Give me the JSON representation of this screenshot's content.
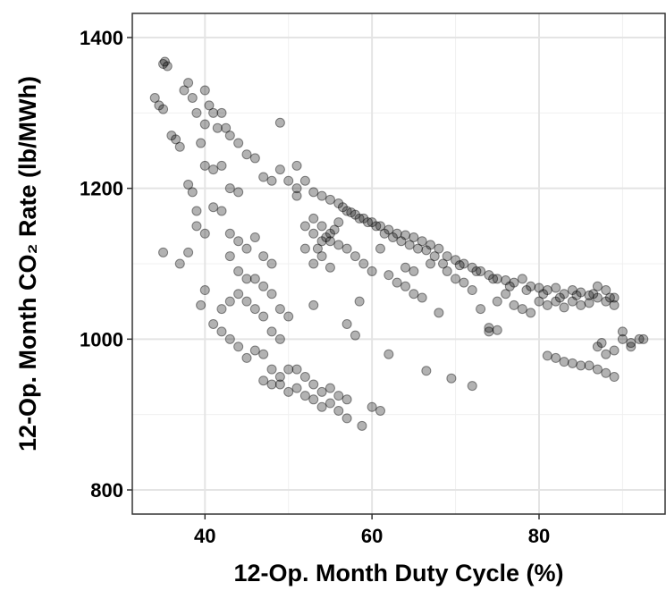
{
  "chart_data": {
    "type": "scatter",
    "x_label": "12-Op. Month Duty Cycle (%)",
    "y_label": "12-Op. Month CO₂ Rate (lb/MWh)",
    "xlim": [
      31.3,
      95.2
    ],
    "ylim": [
      768,
      1432
    ],
    "xticks": [
      40,
      60,
      80
    ],
    "yticks": [
      800,
      1000,
      1200,
      1400
    ],
    "x_minor_grid": [
      50,
      70,
      90
    ],
    "y_minor_grid": [
      900,
      1100,
      1300
    ],
    "grid": true,
    "color": "#000000",
    "opacity": 0.3,
    "x": [
      35,
      35.2,
      35.5,
      34,
      34.5,
      35,
      36,
      36.5,
      37,
      37.5,
      38,
      38.5,
      39,
      39.5,
      40,
      40,
      40.5,
      41,
      41.5,
      42,
      42.5,
      43,
      44,
      45,
      46,
      47,
      48,
      49,
      49,
      50,
      51,
      38,
      38.5,
      39,
      40,
      41,
      42,
      41,
      42,
      43,
      44,
      39,
      40,
      38,
      35,
      37,
      43,
      44,
      45,
      46,
      47,
      48,
      43,
      44,
      45,
      46,
      47,
      48,
      49,
      50,
      44,
      45,
      46,
      47,
      48,
      49,
      42,
      43,
      41,
      42,
      43,
      44,
      45,
      46,
      47,
      48,
      49,
      50,
      51,
      52,
      53,
      54,
      55,
      56,
      57,
      58.8,
      47,
      48,
      49,
      50,
      51,
      52,
      53,
      54,
      55,
      56,
      57,
      58,
      57,
      58.5,
      60,
      61,
      62,
      66.5,
      69.5,
      72,
      39.5,
      40,
      53,
      51,
      51,
      52,
      52,
      52,
      53,
      53,
      53,
      54,
      54,
      54,
      55,
      55,
      55,
      56,
      56,
      56,
      57,
      57,
      58,
      58,
      59,
      59,
      60,
      60,
      61,
      61,
      62,
      62,
      63,
      63,
      64,
      64,
      65,
      65,
      66,
      66,
      67,
      67,
      68,
      68,
      69,
      69,
      70,
      70,
      71,
      71,
      72,
      72,
      73,
      73,
      74,
      74,
      75,
      75,
      76,
      76,
      77,
      77,
      78,
      78,
      79,
      79,
      80,
      80,
      81,
      81,
      82,
      82,
      83,
      83,
      84,
      84,
      85,
      85,
      86,
      86,
      87,
      87,
      88,
      88,
      89,
      89,
      53,
      54,
      55,
      53.5,
      54.5,
      55.5,
      56.5,
      57.5,
      58.5,
      59.5,
      60.5,
      61.5,
      62.5,
      63.5,
      64.5,
      65.5,
      66.5,
      67.5,
      68.5,
      70.5,
      72.5,
      74.5,
      76.5,
      78.5,
      80.5,
      82.5,
      84.5,
      86.5,
      88.5,
      74,
      75,
      64,
      65,
      81,
      82,
      83,
      84,
      85,
      86,
      87,
      87,
      87.5,
      88,
      88,
      89,
      89,
      90,
      90,
      91,
      92,
      92.5,
      91
    ],
    "y": [
      1365,
      1368,
      1362,
      1320,
      1310,
      1305,
      1270,
      1265,
      1255,
      1330,
      1340,
      1320,
      1300,
      1260,
      1285,
      1330,
      1310,
      1300,
      1280,
      1300,
      1280,
      1270,
      1260,
      1245,
      1240,
      1215,
      1210,
      1225,
      1287,
      1210,
      1200,
      1205,
      1195,
      1170,
      1230,
      1225,
      1230,
      1175,
      1170,
      1200,
      1195,
      1150,
      1140,
      1115,
      1115,
      1100,
      1140,
      1130,
      1120,
      1135,
      1110,
      1100,
      1110,
      1090,
      1080,
      1080,
      1070,
      1060,
      1040,
      1030,
      1060,
      1050,
      1040,
      1030,
      1010,
      1000,
      1040,
      1050,
      1020,
      1010,
      1000,
      990,
      975,
      985,
      980,
      960,
      940,
      930,
      935,
      925,
      920,
      910,
      915,
      905,
      895,
      885,
      945,
      940,
      950,
      960,
      960,
      950,
      940,
      930,
      935,
      925,
      920,
      1005,
      1020,
      1050,
      910,
      905,
      980,
      958,
      948,
      938,
      1045,
      1065,
      1045,
      1230,
      1190,
      1210,
      1150,
      1120,
      1195,
      1140,
      1100,
      1190,
      1130,
      1110,
      1185,
      1140,
      1095,
      1180,
      1125,
      1155,
      1170,
      1120,
      1165,
      1110,
      1160,
      1100,
      1155,
      1090,
      1150,
      1120,
      1145,
      1085,
      1140,
      1075,
      1138,
      1070,
      1135,
      1060,
      1130,
      1055,
      1125,
      1100,
      1120,
      1035,
      1110,
      1090,
      1105,
      1080,
      1100,
      1075,
      1095,
      1065,
      1090,
      1040,
      1085,
      1010,
      1080,
      1050,
      1078,
      1060,
      1075,
      1045,
      1080,
      1040,
      1070,
      1035,
      1068,
      1050,
      1065,
      1045,
      1068,
      1050,
      1060,
      1042,
      1065,
      1050,
      1062,
      1045,
      1058,
      1048,
      1070,
      1055,
      1065,
      1050,
      1055,
      1045,
      1160,
      1150,
      1130,
      1120,
      1135,
      1145,
      1175,
      1168,
      1160,
      1155,
      1150,
      1140,
      1135,
      1130,
      1125,
      1120,
      1118,
      1110,
      1100,
      1098,
      1090,
      1080,
      1070,
      1065,
      1060,
      1055,
      1058,
      1060,
      1055,
      1015,
      1012,
      1095,
      1090,
      978,
      975,
      970,
      968,
      965,
      965,
      990,
      960,
      995,
      980,
      955,
      950,
      985,
      1000,
      1010,
      990,
      1000,
      1000,
      995
    ]
  }
}
